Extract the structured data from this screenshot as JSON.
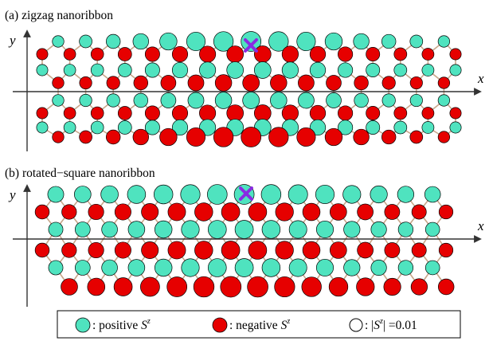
{
  "panels": [
    {
      "id": "a",
      "title": "(a) zigzag nanoribbon",
      "x_label": "x",
      "y_label": "y"
    },
    {
      "id": "b",
      "title": "(b) rotated−square nanoribbon",
      "x_label": "x",
      "y_label": "y"
    }
  ],
  "legend": {
    "positive": {
      "prefix": ": positive ",
      "symbol": "S",
      "sup": "z"
    },
    "negative": {
      "prefix": ": negative ",
      "symbol": "S",
      "sup": "z"
    },
    "scale": {
      "prefix": ": |",
      "symbol": "S",
      "sup": "z",
      "suffix": "| =0.01"
    }
  },
  "colors": {
    "positive": "#4fe3bf",
    "negative": "#e60000",
    "bond": "#c8a68a",
    "marker": "#8a2be2"
  },
  "icons": {
    "impurity": "cross-marker-icon"
  }
}
